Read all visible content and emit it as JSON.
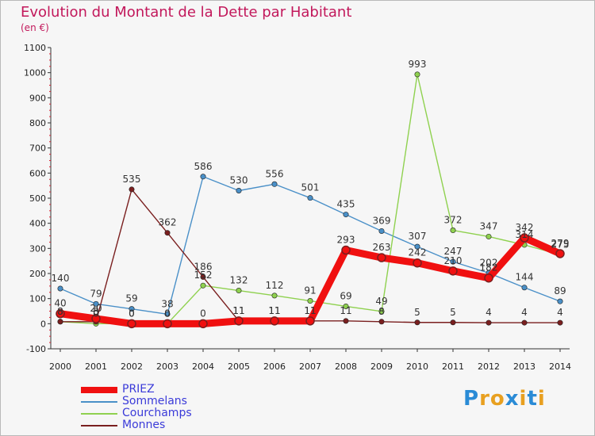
{
  "header": {
    "title": "Evolution du Montant de la Dette par Habitant",
    "subtitle": "(en €)"
  },
  "brand": {
    "letters": [
      "P",
      "r",
      "o",
      "x",
      "i",
      "t",
      "i"
    ],
    "colors": [
      "#2a8bd6",
      "#e8a020",
      "#e8a020",
      "#2a8bd6",
      "#e8a020",
      "#2a8bd6",
      "#e8a020"
    ]
  },
  "chart_data": {
    "type": "line",
    "title": "Evolution du Montant de la Dette par Habitant",
    "ylabel": "(en €)",
    "x": [
      2000,
      2001,
      2002,
      2003,
      2004,
      2005,
      2006,
      2007,
      2008,
      2009,
      2010,
      2011,
      2012,
      2013,
      2014
    ],
    "ylim": [
      -100,
      1100
    ],
    "yticks": [
      -100,
      0,
      100,
      200,
      300,
      400,
      500,
      600,
      700,
      800,
      900,
      1000,
      1100
    ],
    "grid": false,
    "legend_position": "bottom-left",
    "series": [
      {
        "name": "PRIEZ",
        "color": "#f01010",
        "values": [
          40,
          20,
          0,
          0,
          0,
          11,
          11,
          11,
          293,
          263,
          242,
          210,
          182,
          342,
          279
        ],
        "labels": [
          "40",
          "20",
          "0",
          "0",
          "0",
          "11",
          "11",
          "11",
          "293",
          "263",
          "242",
          "210",
          "182",
          "342",
          "279"
        ]
      },
      {
        "name": "Sommelans",
        "color": "#4a90c8",
        "values": [
          140,
          79,
          59,
          38,
          586,
          530,
          556,
          501,
          435,
          369,
          307,
          247,
          202,
          144,
          89
        ],
        "labels": [
          "140",
          "79",
          "59",
          "38",
          "586",
          "530",
          "556",
          "501",
          "435",
          "369",
          "307",
          "247",
          "202",
          "144",
          "89"
        ]
      },
      {
        "name": "Courchamps",
        "color": "#8fd14f",
        "values": [
          8,
          0,
          0,
          0,
          152,
          132,
          112,
          91,
          69,
          49,
          993,
          372,
          347,
          314,
          275
        ],
        "labels": [
          "8",
          "0",
          "0",
          "0",
          "152",
          "132",
          "112",
          "91",
          "69",
          "49",
          "993",
          "372",
          "347",
          "314",
          "275"
        ]
      },
      {
        "name": "Monnes",
        "color": "#7a1f1f",
        "values": [
          8,
          8,
          535,
          362,
          186,
          11,
          11,
          11,
          11,
          8,
          5,
          5,
          4,
          4,
          4
        ],
        "labels": [
          "8",
          "8",
          "535",
          "362",
          "186",
          "11",
          "11",
          "11",
          "11",
          "8",
          "5",
          "5",
          "4",
          "4",
          "4"
        ]
      }
    ]
  }
}
